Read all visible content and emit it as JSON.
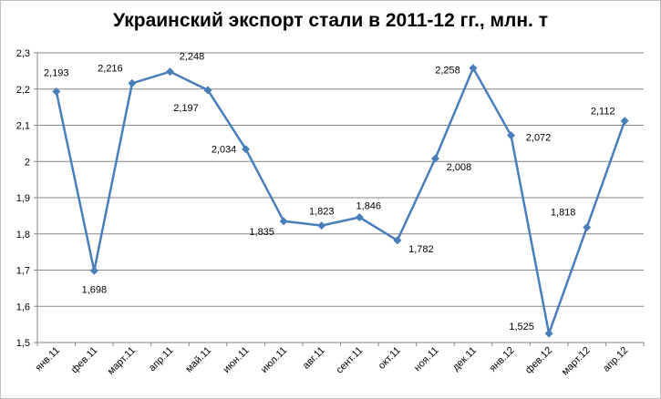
{
  "chart_data": {
    "type": "line",
    "title": "Украинский экспорт стали в 2011-12 гг., млн. т",
    "categories": [
      "янв.11",
      "фев.11",
      "март.11",
      "апр.11",
      "май.11",
      "июн.11",
      "июл.11",
      "авг.11",
      "сент.11",
      "окт.11",
      "ноя.11",
      "дек.11",
      "янв.12",
      "фев.12",
      "март.12",
      "апр.12"
    ],
    "series": [
      {
        "values": [
          2.193,
          1.698,
          2.216,
          2.248,
          2.197,
          2.034,
          1.835,
          1.823,
          1.846,
          1.782,
          2.008,
          2.258,
          2.072,
          1.525,
          1.818,
          2.112
        ]
      }
    ],
    "data_labels": [
      "2,193",
      "1,698",
      "2,216",
      "2,248",
      "2,197",
      "2,034",
      "1,835",
      "1,823",
      "1,846",
      "1,782",
      "2,008",
      "2,258",
      "2,072",
      "1,525",
      "1,818",
      "2,112"
    ],
    "y_ticks": [
      "1,5",
      "1,6",
      "1,7",
      "1,8",
      "1,9",
      "2",
      "2,1",
      "2,2",
      "2,3"
    ],
    "ylim": [
      1.5,
      2.3
    ],
    "grid": true,
    "legend": "none",
    "colors": {
      "line": "#4a7ebb",
      "grid": "#868686",
      "axis": "#868686"
    }
  }
}
